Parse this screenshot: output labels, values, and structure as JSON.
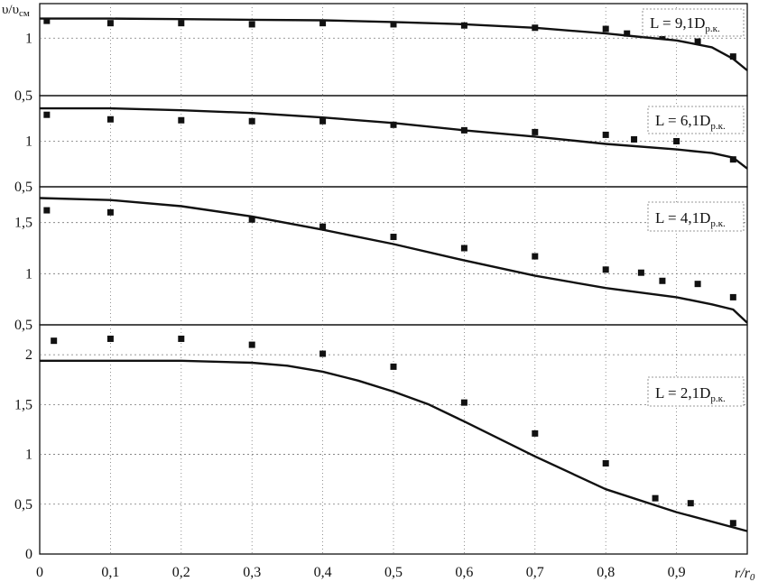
{
  "chart_data": [
    {
      "type": "line",
      "label": "L = 9,1D",
      "label_sub": "р.к.",
      "ylim": [
        0.5,
        1.3
      ],
      "yticks": [
        "0,5",
        "1"
      ],
      "ytick_values": [
        0.5,
        1.0
      ],
      "curve": {
        "x": [
          0,
          0.1,
          0.2,
          0.3,
          0.4,
          0.5,
          0.6,
          0.7,
          0.8,
          0.85,
          0.9,
          0.95,
          0.98,
          1.0
        ],
        "y": [
          1.17,
          1.17,
          1.165,
          1.16,
          1.155,
          1.14,
          1.12,
          1.09,
          1.04,
          1.01,
          0.98,
          0.92,
          0.82,
          0.72
        ]
      },
      "points": {
        "x": [
          0.01,
          0.1,
          0.2,
          0.3,
          0.4,
          0.5,
          0.6,
          0.7,
          0.8,
          0.83,
          0.88,
          0.93,
          0.98
        ],
        "y": [
          1.15,
          1.13,
          1.13,
          1.12,
          1.13,
          1.12,
          1.11,
          1.09,
          1.08,
          1.04,
          1.02,
          0.97,
          0.84
        ]
      }
    },
    {
      "type": "line",
      "label": "L = 6,1D",
      "label_sub": "р.к.",
      "ylim": [
        0.5,
        1.5
      ],
      "yticks": [
        "0,5",
        "1"
      ],
      "ytick_values": [
        0.5,
        1.0
      ],
      "curve": {
        "x": [
          0,
          0.1,
          0.2,
          0.3,
          0.4,
          0.5,
          0.6,
          0.7,
          0.8,
          0.9,
          0.95,
          0.98,
          1.0
        ],
        "y": [
          1.36,
          1.36,
          1.34,
          1.31,
          1.26,
          1.2,
          1.12,
          1.05,
          0.97,
          0.91,
          0.87,
          0.82,
          0.7
        ]
      },
      "points": {
        "x": [
          0.01,
          0.1,
          0.2,
          0.3,
          0.4,
          0.5,
          0.6,
          0.7,
          0.8,
          0.84,
          0.9,
          0.98
        ],
        "y": [
          1.29,
          1.24,
          1.23,
          1.22,
          1.22,
          1.18,
          1.12,
          1.1,
          1.07,
          1.02,
          1.0,
          0.8
        ]
      }
    },
    {
      "type": "line",
      "label": "L = 4,1D",
      "label_sub": "р.к.",
      "ylim": [
        0.5,
        1.85
      ],
      "yticks": [
        "0,5",
        "1",
        "1,5"
      ],
      "ytick_values": [
        0.5,
        1.0,
        1.5
      ],
      "curve": {
        "x": [
          0,
          0.1,
          0.2,
          0.3,
          0.4,
          0.5,
          0.6,
          0.7,
          0.8,
          0.9,
          0.95,
          0.98,
          1.0
        ],
        "y": [
          1.74,
          1.72,
          1.66,
          1.56,
          1.43,
          1.29,
          1.13,
          0.98,
          0.86,
          0.77,
          0.7,
          0.65,
          0.52
        ]
      },
      "points": {
        "x": [
          0.01,
          0.1,
          0.3,
          0.4,
          0.5,
          0.6,
          0.7,
          0.8,
          0.85,
          0.88,
          0.93,
          0.98
        ],
        "y": [
          1.62,
          1.6,
          1.53,
          1.46,
          1.36,
          1.25,
          1.17,
          1.04,
          1.01,
          0.93,
          0.9,
          0.77
        ]
      }
    },
    {
      "type": "line",
      "label": "L = 2,1D",
      "label_sub": "р.к.",
      "ylim": [
        0,
        2.3
      ],
      "yticks": [
        "0",
        "0,5",
        "1",
        "1,5",
        "2"
      ],
      "ytick_values": [
        0,
        0.5,
        1.0,
        1.5,
        2.0
      ],
      "curve": {
        "x": [
          0,
          0.1,
          0.2,
          0.3,
          0.35,
          0.4,
          0.45,
          0.5,
          0.55,
          0.6,
          0.7,
          0.8,
          0.9,
          1.0
        ],
        "y": [
          1.94,
          1.94,
          1.94,
          1.92,
          1.89,
          1.83,
          1.74,
          1.63,
          1.5,
          1.33,
          0.98,
          0.65,
          0.42,
          0.23
        ]
      },
      "points": {
        "x": [
          0.02,
          0.1,
          0.2,
          0.3,
          0.4,
          0.5,
          0.6,
          0.7,
          0.8,
          0.87,
          0.92,
          0.98
        ],
        "y": [
          2.14,
          2.16,
          2.16,
          2.1,
          2.01,
          1.88,
          1.52,
          1.21,
          0.91,
          0.56,
          0.51,
          0.31
        ]
      }
    }
  ],
  "axes": {
    "ylabel": "υ/υ",
    "ylabel_sub": "см",
    "xlabel_r": "r",
    "xlabel_slash": "/",
    "xlabel_r0": "r",
    "xlabel_r0_sub": "0",
    "xticks": [
      "0",
      "0,1",
      "0,2",
      "0,3",
      "0,4",
      "0,5",
      "0,6",
      "0,7",
      "0,8",
      "0,9"
    ],
    "xtick_values": [
      0,
      0.1,
      0.2,
      0.3,
      0.4,
      0.5,
      0.6,
      0.7,
      0.8,
      0.9
    ],
    "xlim": [
      0,
      1.0
    ]
  },
  "colors": {
    "line": "#111111",
    "grid": "#777777"
  }
}
